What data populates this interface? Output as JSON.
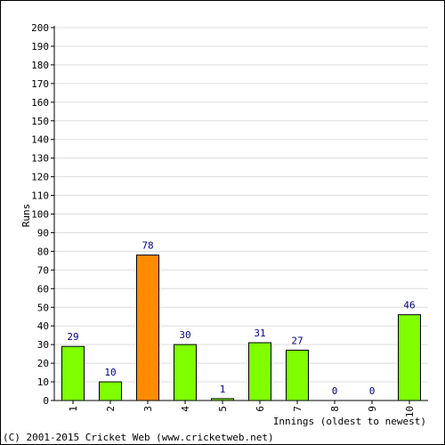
{
  "chart_data": {
    "type": "bar",
    "categories": [
      "1",
      "2",
      "3",
      "4",
      "5",
      "6",
      "7",
      "8",
      "9",
      "10"
    ],
    "values": [
      29,
      10,
      78,
      30,
      1,
      31,
      27,
      0,
      0,
      46
    ],
    "data_labels": [
      "29",
      "10",
      "78",
      "30",
      "1",
      "31",
      "27",
      "0",
      "0",
      "46"
    ],
    "bar_colors": [
      "#7fff00",
      "#7fff00",
      "#ff8c00",
      "#7fff00",
      "#7fff00",
      "#7fff00",
      "#7fff00",
      "#7fff00",
      "#7fff00",
      "#7fff00"
    ],
    "xlabel": "Innings (oldest to newest)",
    "ylabel": "Runs",
    "ylim": [
      0,
      200
    ],
    "yticks": [
      "0",
      "10",
      "20",
      "30",
      "40",
      "50",
      "60",
      "70",
      "80",
      "90",
      "100",
      "110",
      "120",
      "130",
      "140",
      "150",
      "160",
      "170",
      "180",
      "190",
      "200"
    ],
    "grid": true,
    "label_color": "#000080"
  },
  "footer": {
    "text": "(C) 2001-2015 Cricket Web (www.cricketweb.net)"
  }
}
